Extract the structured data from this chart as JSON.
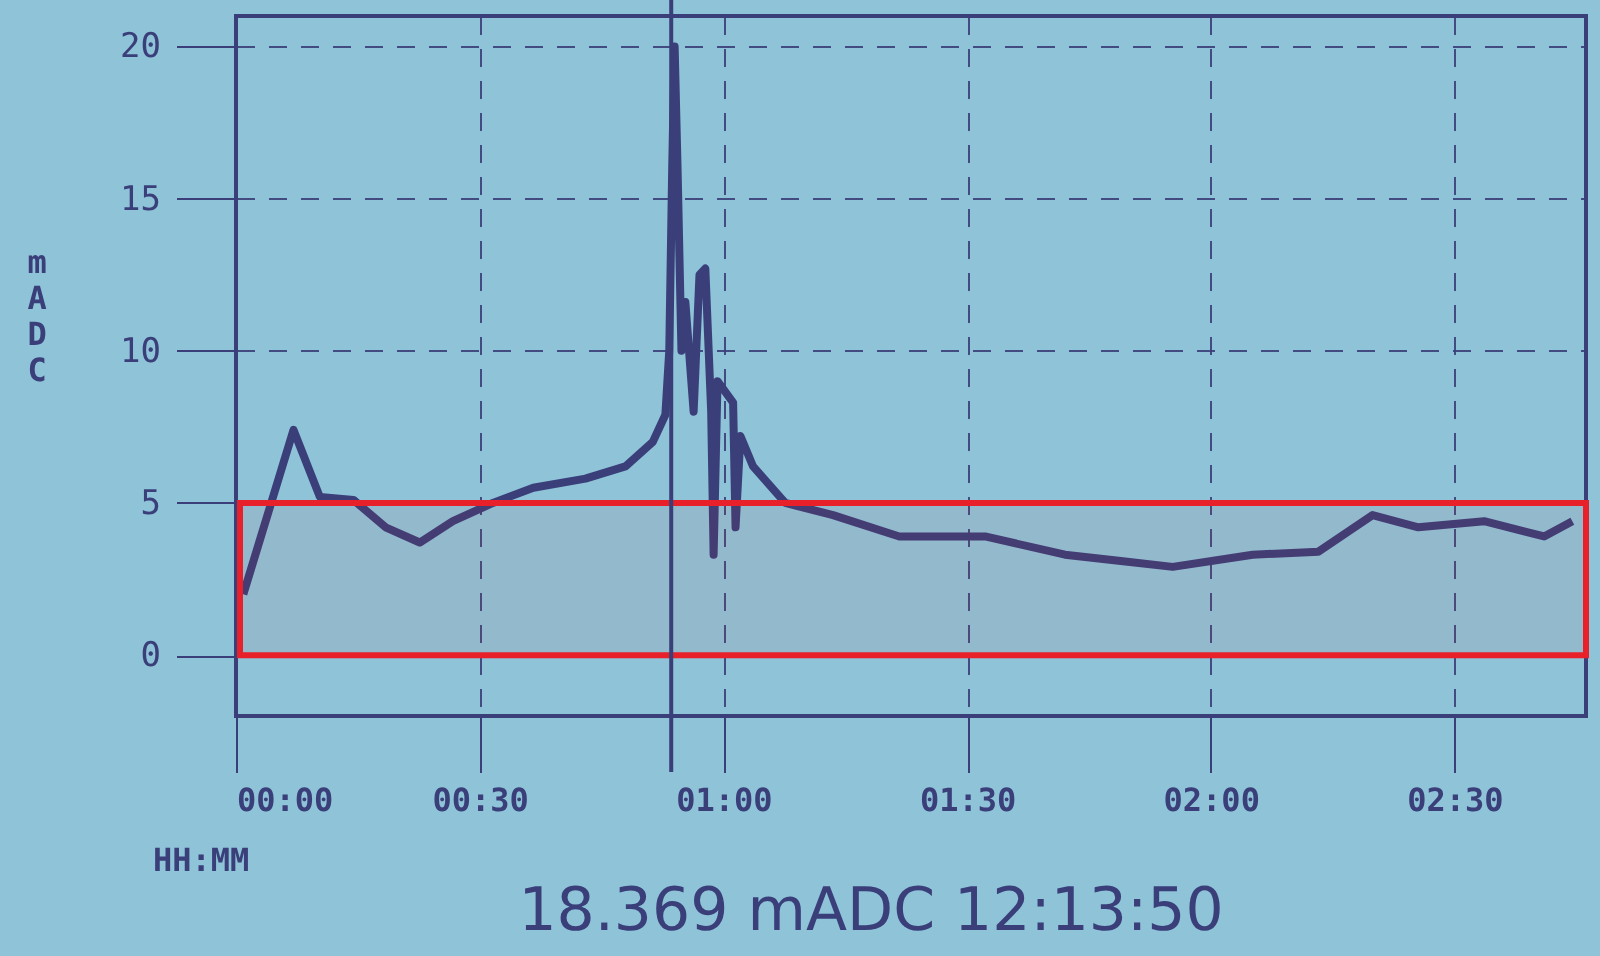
{
  "chart_data": {
    "type": "line",
    "xlabel": "HH:MM",
    "ylabel": "mADC",
    "annotations": [
      "18.369 mADC 12:13:50"
    ],
    "xlim": [
      0,
      2.77
    ],
    "ylim": [
      -2,
      21
    ],
    "xticks": [
      {
        "value": 0,
        "label": "00:00"
      },
      {
        "value": 0.5,
        "label": "00:30"
      },
      {
        "value": 1,
        "label": "01:00"
      },
      {
        "value": 1.5,
        "label": "01:30"
      },
      {
        "value": 2,
        "label": "02:00"
      },
      {
        "value": 2.5,
        "label": "02:30"
      }
    ],
    "yticks": [
      0,
      5,
      10,
      15,
      20
    ],
    "grid": true,
    "marker": "none",
    "line_style": "solid",
    "ref_lines": [
      {
        "axis": "x",
        "value": 0.893,
        "color": "#3a3f7a",
        "line_style": "solid"
      }
    ],
    "bands": [
      {
        "axis": "y",
        "from": 0,
        "to": 5,
        "color": "#e8202a"
      }
    ],
    "series": [
      {
        "color": "#3a3f7a",
        "x": [
          0.015,
          0.118,
          0.172,
          0.241,
          0.307,
          0.377,
          0.445,
          0.527,
          0.61,
          0.717,
          0.799,
          0.855,
          0.881,
          0.889,
          0.895,
          0.9,
          0.906,
          0.914,
          0.922,
          0.939,
          0.951,
          0.963,
          0.975,
          0.98,
          0.988,
          1.02,
          1.025,
          1.035,
          1.061,
          1.127,
          1.225,
          1.361,
          1.537,
          1.701,
          1.811,
          1.922,
          2.086,
          2.221,
          2.332,
          2.426,
          2.561,
          2.684,
          2.742
        ],
        "values": [
          2.0,
          7.4,
          5.2,
          5.1,
          4.2,
          3.7,
          4.4,
          5.0,
          5.5,
          5.8,
          6.2,
          7.0,
          7.9,
          10,
          16,
          20,
          16,
          10,
          11.6,
          8,
          12.5,
          12.7,
          8,
          3.3,
          9,
          8.3,
          4.2,
          7.2,
          6.2,
          5.0,
          4.6,
          3.9,
          3.9,
          3.3,
          3.1,
          2.9,
          3.3,
          3.4,
          4.6,
          4.2,
          4.4,
          3.9,
          4.4
        ]
      }
    ]
  }
}
